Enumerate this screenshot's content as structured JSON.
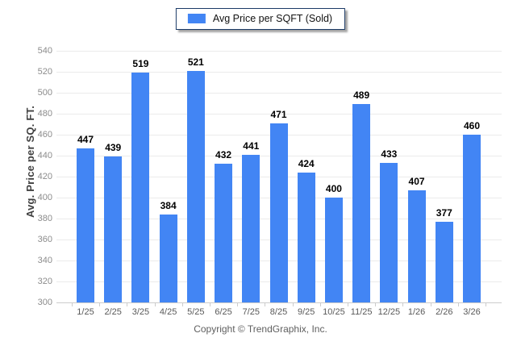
{
  "legend": {
    "label": "Avg Price per SQFT (Sold)"
  },
  "footer": {
    "copyright": "Copyright © TrendGraphix, Inc."
  },
  "colors": {
    "bar": "#4285f4",
    "legend_border": "#1b3a66",
    "grid": "#ebebeb",
    "baseline": "#cccccc",
    "axis_tick": "#cccccc",
    "ytick_text": "#8c8c8c",
    "xtick_text": "#595959",
    "value_text": "#000000",
    "ylabel_text": "#404040",
    "footer_text": "#606060"
  },
  "chart_data": {
    "type": "bar",
    "title": "",
    "categories": [
      "1/25",
      "2/25",
      "3/25",
      "4/25",
      "5/25",
      "6/25",
      "7/25",
      "8/25",
      "9/25",
      "10/25",
      "11/25",
      "12/25",
      "1/26",
      "2/26",
      "3/26"
    ],
    "values": [
      447,
      439,
      519,
      384,
      521,
      432,
      441,
      471,
      424,
      400,
      489,
      433,
      407,
      377,
      460
    ],
    "series": [
      {
        "name": "Avg Price per SQFT (Sold)",
        "values": [
          447,
          439,
          519,
          384,
          521,
          432,
          441,
          471,
          424,
          400,
          489,
          433,
          407,
          377,
          460
        ]
      }
    ],
    "xlabel": "",
    "ylabel": "Avg. Price per SQ. FT.",
    "ylim": [
      300,
      540
    ],
    "ytick_step": 20,
    "grid": true,
    "legend_position": "top-center"
  }
}
